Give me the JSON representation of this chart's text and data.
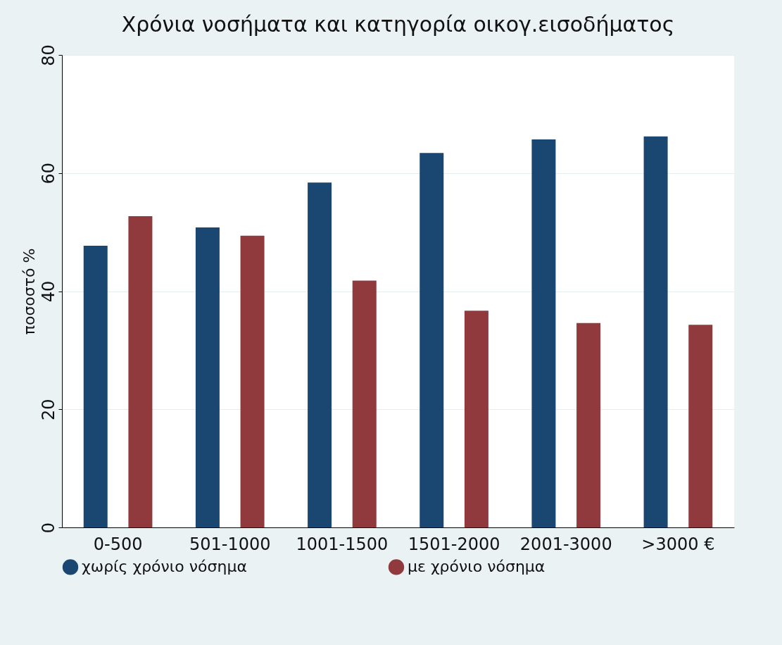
{
  "chart_data": {
    "type": "bar",
    "title": "Χρόνια νοσήματα και κατηγορία οικογ.εισοδήματος",
    "ylabel": "ποσοστό %",
    "categories": [
      "0-500",
      "501-1000",
      "1001-1500",
      "1501-2000",
      "2001-3000",
      ">3000 €"
    ],
    "series": [
      {
        "name": "χωρίς χρόνιο νόσημα",
        "color": "#1a4672",
        "values": [
          47.7,
          50.8,
          58.4,
          63.4,
          65.7,
          66.2
        ]
      },
      {
        "name": "με χρόνιο νόσημα",
        "color": "#903a3e",
        "values": [
          52.7,
          49.4,
          41.8,
          36.7,
          34.6,
          34.3
        ]
      }
    ],
    "ylim": [
      0,
      80
    ],
    "yticks": [
      0,
      20,
      40,
      60,
      80
    ],
    "grid": "y",
    "legend": "bottom"
  }
}
